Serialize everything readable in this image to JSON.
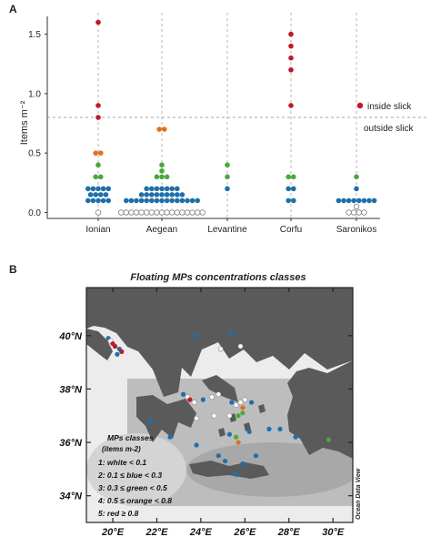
{
  "colors": {
    "red": "#c0182a",
    "orange": "#e07020",
    "green": "#4aa83a",
    "blue": "#1f6faa",
    "white": "#ffffff",
    "land": "#5a5a5a",
    "sea_shallow": "#e6e6e6",
    "sea_deep": "#8e8e8e",
    "grid": "#999999"
  },
  "panel_a": {
    "label": "A",
    "ylabel": "Items m⁻²",
    "yticks": [
      "0.0",
      "0.5",
      "1.0",
      "1.5"
    ],
    "slick_inside": "inside slick",
    "slick_outside": "outside slick"
  },
  "chart_data": {
    "type": "scatter",
    "subtype": "dot-strip",
    "categories": [
      "Ionian",
      "Aegean",
      "Levantine",
      "Corfu",
      "Saronikos"
    ],
    "ylabel": "Items m⁻²",
    "ylim": [
      -0.05,
      1.65
    ],
    "threshold": 0.8,
    "legend": "inside slick (red) above threshold / outside slick below threshold",
    "class_limits": {
      "white": "< 0.1",
      "blue": "0.1 ≤ x < 0.3",
      "green": "0.3 ≤ x < 0.5",
      "orange": "0.5 ≤ x < 0.8",
      "red": "≥ 0.8"
    },
    "points": [
      {
        "category": "Ionian",
        "values": [
          0.0,
          0.1,
          0.1,
          0.1,
          0.1,
          0.1,
          0.15,
          0.15,
          0.15,
          0.15,
          0.2,
          0.2,
          0.2,
          0.2,
          0.2,
          0.3,
          0.3,
          0.4,
          0.5,
          0.5,
          0.8,
          0.9,
          1.6
        ]
      },
      {
        "category": "Aegean",
        "values": [
          0.0,
          0.0,
          0.0,
          0.0,
          0.0,
          0.0,
          0.0,
          0.0,
          0.0,
          0.0,
          0.0,
          0.0,
          0.0,
          0.0,
          0.0,
          0.0,
          0.0,
          0.1,
          0.1,
          0.1,
          0.1,
          0.1,
          0.1,
          0.1,
          0.1,
          0.1,
          0.1,
          0.1,
          0.1,
          0.1,
          0.1,
          0.1,
          0.15,
          0.15,
          0.15,
          0.15,
          0.15,
          0.15,
          0.15,
          0.15,
          0.15,
          0.2,
          0.2,
          0.2,
          0.2,
          0.2,
          0.2,
          0.2,
          0.3,
          0.3,
          0.3,
          0.35,
          0.4,
          0.7,
          0.7
        ]
      },
      {
        "category": "Levantine",
        "values": [
          0.2,
          0.3,
          0.4
        ]
      },
      {
        "category": "Corfu",
        "values": [
          0.1,
          0.1,
          0.2,
          0.2,
          0.3,
          0.3,
          0.9,
          1.2,
          1.3,
          1.4,
          1.5
        ]
      },
      {
        "category": "Saronikos",
        "values": [
          0.0,
          0.0,
          0.0,
          0.0,
          0.05,
          0.1,
          0.1,
          0.1,
          0.1,
          0.1,
          0.1,
          0.1,
          0.1,
          0.2,
          0.3
        ]
      }
    ]
  },
  "panel_b": {
    "label": "B",
    "title": "Floating MPs concentrations classes",
    "lat_labels": [
      "40°N",
      "38°N",
      "36°N",
      "34°N"
    ],
    "lon_labels": [
      "20°E",
      "22°E",
      "24°E",
      "26°E",
      "28°E",
      "30°E"
    ],
    "credit": "Ocean Data View",
    "legend_title": "MPs classes",
    "legend_subtitle": "(items m-2)",
    "legend_items": [
      "1:  white < 0.1",
      "2: 0.1 ≤ blue < 0.3",
      "3: 0.3 ≤ green < 0.5",
      "4: 0.5 ≤ orange < 0.8",
      "5: red ≥ 0.8"
    ],
    "samples": [
      {
        "lon": 19.8,
        "lat": 39.9,
        "class": "blue"
      },
      {
        "lon": 19.9,
        "lat": 39.8,
        "class": "white"
      },
      {
        "lon": 20.0,
        "lat": 39.7,
        "class": "red"
      },
      {
        "lon": 20.1,
        "lat": 39.6,
        "class": "red"
      },
      {
        "lon": 20.3,
        "lat": 39.5,
        "class": "blue"
      },
      {
        "lon": 20.4,
        "lat": 39.4,
        "class": "red"
      },
      {
        "lon": 20.2,
        "lat": 39.3,
        "class": "blue"
      },
      {
        "lon": 23.8,
        "lat": 40.0,
        "class": "blue"
      },
      {
        "lon": 25.4,
        "lat": 40.1,
        "class": "blue"
      },
      {
        "lon": 24.9,
        "lat": 39.5,
        "class": "white"
      },
      {
        "lon": 25.8,
        "lat": 39.6,
        "class": "white"
      },
      {
        "lon": 23.2,
        "lat": 37.8,
        "class": "blue"
      },
      {
        "lon": 23.4,
        "lat": 37.7,
        "class": "white"
      },
      {
        "lon": 23.5,
        "lat": 37.6,
        "class": "red"
      },
      {
        "lon": 23.7,
        "lat": 37.5,
        "class": "white"
      },
      {
        "lon": 24.1,
        "lat": 37.6,
        "class": "blue"
      },
      {
        "lon": 24.5,
        "lat": 37.7,
        "class": "white"
      },
      {
        "lon": 24.8,
        "lat": 37.8,
        "class": "white"
      },
      {
        "lon": 25.4,
        "lat": 37.5,
        "class": "blue"
      },
      {
        "lon": 25.6,
        "lat": 37.4,
        "class": "white"
      },
      {
        "lon": 25.8,
        "lat": 37.5,
        "class": "white"
      },
      {
        "lon": 26.0,
        "lat": 37.6,
        "class": "white"
      },
      {
        "lon": 26.3,
        "lat": 37.5,
        "class": "blue"
      },
      {
        "lon": 25.9,
        "lat": 37.3,
        "class": "orange"
      },
      {
        "lon": 25.9,
        "lat": 37.1,
        "class": "green"
      },
      {
        "lon": 25.7,
        "lat": 37.0,
        "class": "green"
      },
      {
        "lon": 25.3,
        "lat": 37.0,
        "class": "white"
      },
      {
        "lon": 24.6,
        "lat": 37.0,
        "class": "white"
      },
      {
        "lon": 23.8,
        "lat": 36.9,
        "class": "white"
      },
      {
        "lon": 25.6,
        "lat": 36.2,
        "class": "green"
      },
      {
        "lon": 25.7,
        "lat": 36.0,
        "class": "orange"
      },
      {
        "lon": 25.3,
        "lat": 36.3,
        "class": "blue"
      },
      {
        "lon": 26.2,
        "lat": 36.4,
        "class": "blue"
      },
      {
        "lon": 27.1,
        "lat": 36.5,
        "class": "blue"
      },
      {
        "lon": 27.6,
        "lat": 36.5,
        "class": "blue"
      },
      {
        "lon": 28.3,
        "lat": 36.2,
        "class": "blue"
      },
      {
        "lon": 21.7,
        "lat": 36.8,
        "class": "blue"
      },
      {
        "lon": 22.6,
        "lat": 36.2,
        "class": "blue"
      },
      {
        "lon": 23.8,
        "lat": 35.9,
        "class": "blue"
      },
      {
        "lon": 24.8,
        "lat": 35.5,
        "class": "blue"
      },
      {
        "lon": 25.1,
        "lat": 35.3,
        "class": "blue"
      },
      {
        "lon": 25.9,
        "lat": 35.2,
        "class": "blue"
      },
      {
        "lon": 26.5,
        "lat": 35.5,
        "class": "blue"
      },
      {
        "lon": 25.6,
        "lat": 34.8,
        "class": "blue"
      },
      {
        "lon": 29.8,
        "lat": 36.1,
        "class": "green"
      }
    ]
  }
}
